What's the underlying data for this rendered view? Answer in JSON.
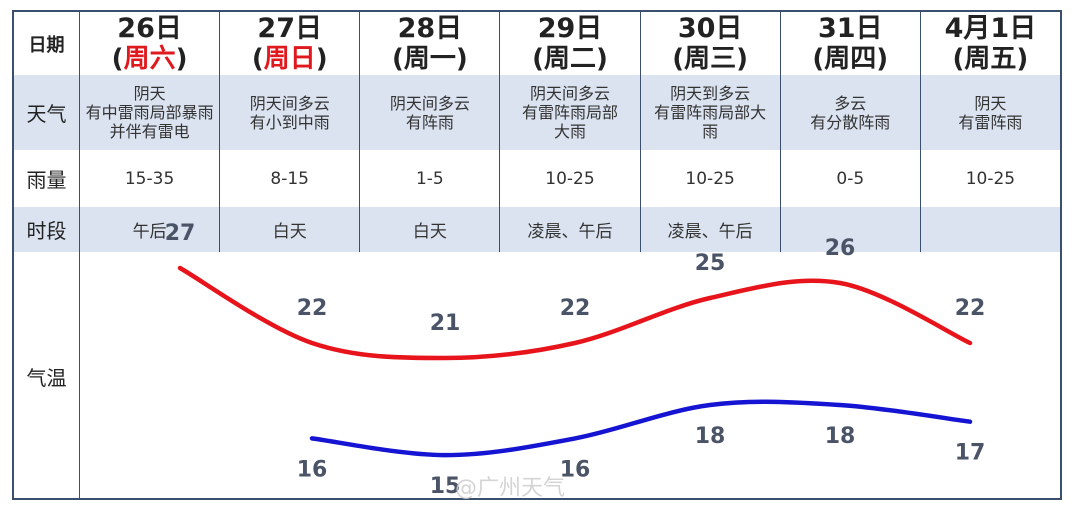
{
  "row_labels": {
    "date": "日期",
    "weather": "天气",
    "rain": "雨量",
    "period": "时段",
    "temp": "气温"
  },
  "days": [
    {
      "date": "26日",
      "weekday": "周六",
      "weekend": true,
      "weather": [
        "阴天",
        "有中雷雨局部暴雨",
        "并伴有雷电"
      ],
      "rain": "15-35",
      "period": "午后"
    },
    {
      "date": "27日",
      "weekday": "周日",
      "weekend": true,
      "weather": [
        "阴天间多云",
        "有小到中雨"
      ],
      "rain": "8-15",
      "period": "白天"
    },
    {
      "date": "28日",
      "weekday": "周一",
      "weekend": false,
      "weather": [
        "阴天间多云",
        "有阵雨"
      ],
      "rain": "1-5",
      "period": "白天"
    },
    {
      "date": "29日",
      "weekday": "周二",
      "weekend": false,
      "weather": [
        "阴天间多云",
        "有雷阵雨局部",
        "大雨"
      ],
      "rain": "10-25",
      "period": "凌晨、午后"
    },
    {
      "date": "30日",
      "weekday": "周三",
      "weekend": false,
      "weather": [
        "阴天到多云",
        "有雷阵雨局部大",
        "雨"
      ],
      "rain": "10-25",
      "period": "凌晨、午后"
    },
    {
      "date": "31日",
      "weekday": "周四",
      "weekend": false,
      "weather": [
        "多云",
        "有分散阵雨"
      ],
      "rain": "0-5",
      "period": ""
    },
    {
      "date": "4月1日",
      "weekday": "周五",
      "weekend": false,
      "weather": [
        "阴天",
        "有雷阵雨"
      ],
      "rain": "10-25",
      "period": ""
    }
  ],
  "chart_data": {
    "type": "line",
    "categories": [
      "26日",
      "27日",
      "28日",
      "29日",
      "30日",
      "31日",
      "4月1日"
    ],
    "series": [
      {
        "values": [
          27,
          22,
          21,
          22,
          25,
          26,
          22
        ],
        "color": "#e8141c"
      },
      {
        "values": [
          null,
          16,
          15,
          16,
          18,
          18,
          17
        ],
        "color": "#1414d2"
      }
    ]
  },
  "colors": {
    "border": "#3a4e6e",
    "band": "#dbe3f0",
    "weekend": "#e0191e"
  },
  "watermark": "@广州天气"
}
